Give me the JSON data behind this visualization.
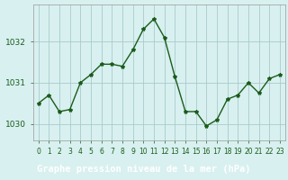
{
  "x": [
    0,
    1,
    2,
    3,
    4,
    5,
    6,
    7,
    8,
    9,
    10,
    11,
    12,
    13,
    14,
    15,
    16,
    17,
    18,
    19,
    20,
    21,
    22,
    23
  ],
  "y": [
    1030.5,
    1030.7,
    1030.3,
    1030.35,
    1031.0,
    1031.2,
    1031.45,
    1031.45,
    1031.4,
    1031.8,
    1032.3,
    1032.55,
    1032.1,
    1031.15,
    1030.3,
    1030.3,
    1029.95,
    1030.1,
    1030.6,
    1030.7,
    1031.0,
    1030.75,
    1031.1,
    1031.2
  ],
  "line_color": "#1a5c1a",
  "marker": "*",
  "marker_size": 3,
  "linewidth": 1.0,
  "bg_color": "#d8f0f0",
  "grid_color": "#aacaca",
  "border_color": "#888888",
  "xlabel": "Graphe pression niveau de la mer (hPa)",
  "yticks": [
    1030,
    1031,
    1032
  ],
  "ylim": [
    1029.6,
    1032.9
  ],
  "xlim": [
    -0.5,
    23.5
  ],
  "xtick_labels": [
    "0",
    "1",
    "2",
    "3",
    "4",
    "5",
    "6",
    "7",
    "8",
    "9",
    "10",
    "11",
    "12",
    "13",
    "14",
    "15",
    "16",
    "17",
    "18",
    "19",
    "20",
    "21",
    "22",
    "23"
  ],
  "tick_color": "#1a5c1a",
  "tick_fontsize": 5.5,
  "ytick_fontsize": 6.5,
  "bottom_bar_color": "#2e6b2e",
  "xlabel_fontsize": 7.5
}
